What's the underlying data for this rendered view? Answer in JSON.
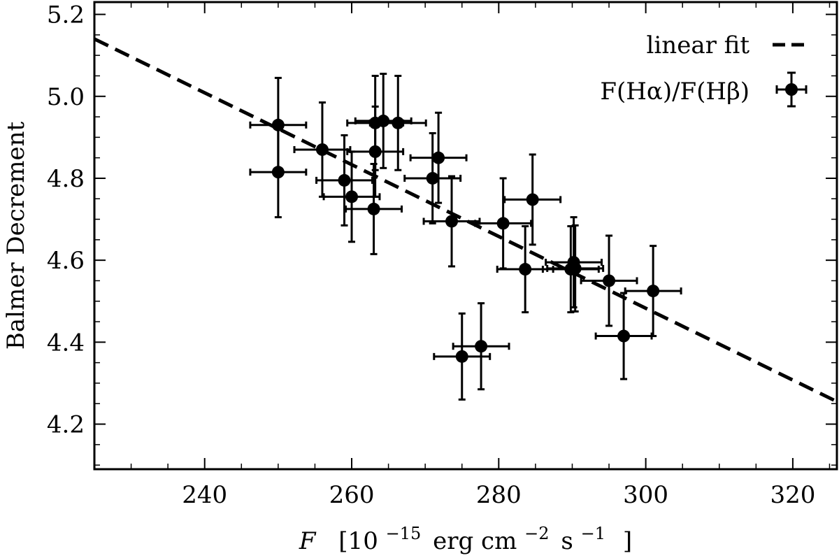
{
  "chart_data": {
    "type": "scatter",
    "title": "",
    "xlabel": "F [10^−15 erg cm^−2 s^−1 ]",
    "xlabel_parts": {
      "var": "F",
      "open": "[10",
      "exp1": "−15",
      "mid1": "erg cm",
      "exp2": "−2",
      "mid2": "s",
      "exp3": "−1",
      "close": "]"
    },
    "ylabel": "Balmer Decrement",
    "xlim": [
      225,
      326
    ],
    "ylim": [
      4.09,
      5.23
    ],
    "xticks": [
      240,
      260,
      280,
      300,
      320
    ],
    "yticks": [
      4.2,
      4.4,
      4.6,
      4.8,
      5.0,
      5.2
    ],
    "xtick_labels": [
      "240",
      "260",
      "280",
      "300",
      "320"
    ],
    "ytick_labels": [
      "4.2",
      "4.4",
      "4.6",
      "4.8",
      "5.0",
      "5.2"
    ],
    "grid": false,
    "legend_position": "top-right",
    "series": [
      {
        "name": "F(Hα)/F(Hβ)",
        "kind": "errorbar",
        "color": "#000000",
        "points": [
          {
            "x": 250.0,
            "y": 4.93,
            "xerr": 3.8,
            "yerr": 0.115
          },
          {
            "x": 250.0,
            "y": 4.815,
            "xerr": 3.8,
            "yerr": 0.11
          },
          {
            "x": 256.0,
            "y": 4.87,
            "xerr": 3.8,
            "yerr": 0.115
          },
          {
            "x": 259.0,
            "y": 4.795,
            "xerr": 3.8,
            "yerr": 0.11
          },
          {
            "x": 260.0,
            "y": 4.755,
            "xerr": 3.8,
            "yerr": 0.11
          },
          {
            "x": 263.0,
            "y": 4.725,
            "xerr": 3.8,
            "yerr": 0.11
          },
          {
            "x": 263.2,
            "y": 4.865,
            "xerr": 3.8,
            "yerr": 0.11
          },
          {
            "x": 263.2,
            "y": 4.935,
            "xerr": 3.8,
            "yerr": 0.115
          },
          {
            "x": 264.3,
            "y": 4.94,
            "xerr": 3.8,
            "yerr": 0.115
          },
          {
            "x": 266.3,
            "y": 4.935,
            "xerr": 3.8,
            "yerr": 0.115
          },
          {
            "x": 271.0,
            "y": 4.8,
            "xerr": 3.8,
            "yerr": 0.11
          },
          {
            "x": 271.8,
            "y": 4.85,
            "xerr": 3.8,
            "yerr": 0.11
          },
          {
            "x": 273.6,
            "y": 4.695,
            "xerr": 3.8,
            "yerr": 0.11
          },
          {
            "x": 275.0,
            "y": 4.365,
            "xerr": 3.8,
            "yerr": 0.105
          },
          {
            "x": 277.6,
            "y": 4.39,
            "xerr": 3.8,
            "yerr": 0.105
          },
          {
            "x": 280.6,
            "y": 4.69,
            "xerr": 3.8,
            "yerr": 0.11
          },
          {
            "x": 283.6,
            "y": 4.578,
            "xerr": 3.8,
            "yerr": 0.105
          },
          {
            "x": 284.6,
            "y": 4.748,
            "xerr": 3.8,
            "yerr": 0.11
          },
          {
            "x": 289.8,
            "y": 4.578,
            "xerr": 3.8,
            "yerr": 0.105
          },
          {
            "x": 290.2,
            "y": 4.595,
            "xerr": 3.8,
            "yerr": 0.11
          },
          {
            "x": 290.4,
            "y": 4.58,
            "xerr": 3.8,
            "yerr": 0.105
          },
          {
            "x": 295.0,
            "y": 4.55,
            "xerr": 3.8,
            "yerr": 0.11
          },
          {
            "x": 297.0,
            "y": 4.415,
            "xerr": 3.8,
            "yerr": 0.105
          },
          {
            "x": 301.0,
            "y": 4.525,
            "xerr": 3.8,
            "yerr": 0.11
          }
        ]
      },
      {
        "name": "linear fit",
        "kind": "line",
        "style": "dashed",
        "color": "#000000",
        "points": [
          {
            "x": 225.0,
            "y": 5.14
          },
          {
            "x": 326.0,
            "y": 4.255
          }
        ]
      }
    ]
  }
}
